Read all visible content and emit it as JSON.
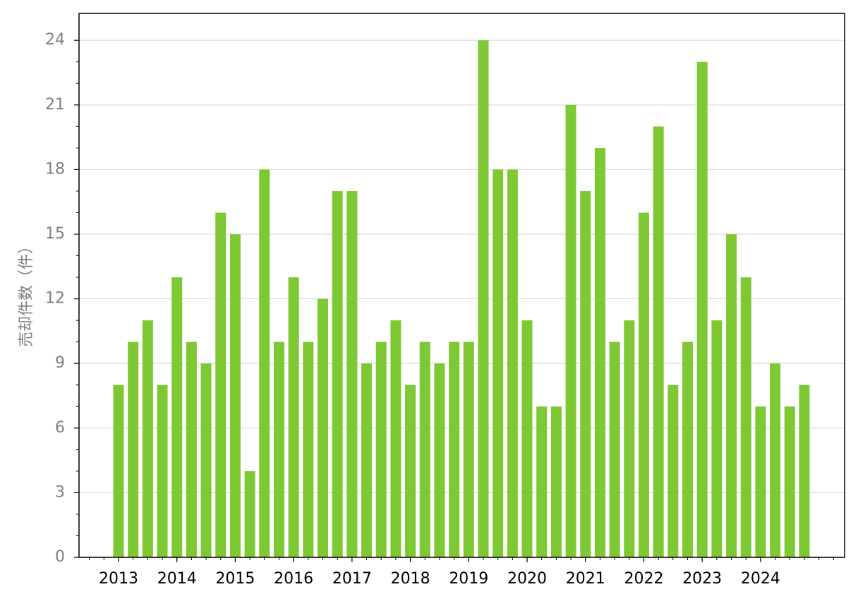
{
  "chart_data": {
    "type": "bar",
    "y_label": "売却件数（件）",
    "categories": [
      "2013",
      null,
      null,
      null,
      "2014",
      null,
      null,
      null,
      "2015",
      null,
      null,
      null,
      "2016",
      null,
      null,
      null,
      "2017",
      null,
      null,
      null,
      "2018",
      null,
      null,
      null,
      "2019",
      null,
      null,
      null,
      "2020",
      null,
      null,
      null,
      "2021",
      null,
      null,
      null,
      "2022",
      null,
      null,
      null,
      "2023",
      null,
      null,
      null,
      "2024",
      null,
      null,
      null
    ],
    "values": [
      8,
      10,
      11,
      8,
      13,
      10,
      9,
      16,
      15,
      4,
      18,
      10,
      13,
      10,
      12,
      17,
      17,
      9,
      10,
      11,
      8,
      10,
      9,
      10,
      10,
      24,
      18,
      18,
      11,
      7,
      7,
      21,
      17,
      19,
      10,
      11,
      16,
      20,
      8,
      10,
      23,
      11,
      15,
      13,
      7,
      9,
      7,
      8
    ],
    "color": "#7ec833",
    "ylim": [
      0,
      25.25
    ],
    "yticks": [
      0,
      3,
      6,
      9,
      12,
      15,
      18,
      21,
      24
    ],
    "grid": true
  }
}
